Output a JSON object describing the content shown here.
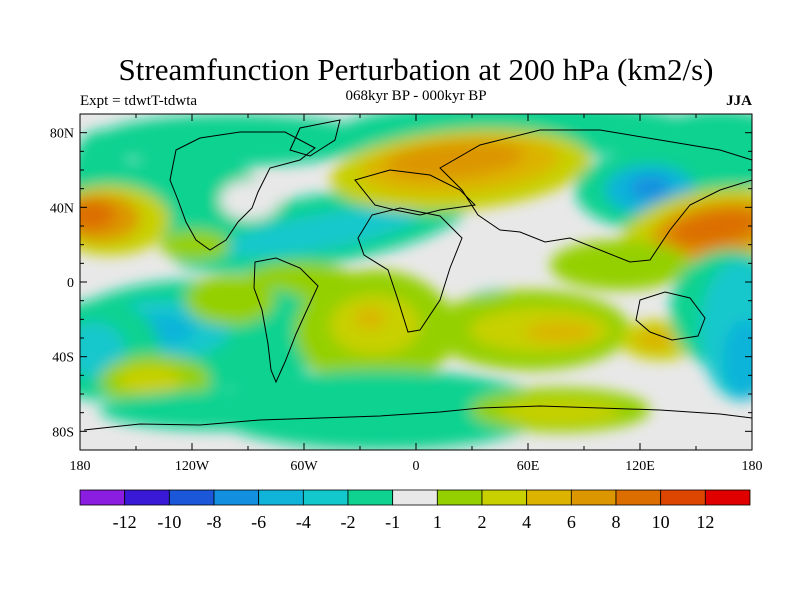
{
  "title": "Streamfunction Perturbation at 200 hPa (km2/s)",
  "subtitle": "068kyr BP - 000kyr BP",
  "left_label": "Expt = tdwtT-tdwta",
  "right_label": "JJA",
  "map": {
    "projection": "cylindrical equidistant",
    "lon_range": [
      -180,
      180
    ],
    "lat_range": [
      -90,
      90
    ],
    "lat_ticks": [
      {
        "value": 80,
        "label": "80N"
      },
      {
        "value": 40,
        "label": "40N"
      },
      {
        "value": 0,
        "label": "0"
      },
      {
        "value": -40,
        "label": "40S"
      },
      {
        "value": -80,
        "label": "80S"
      }
    ],
    "lon_ticks": [
      {
        "value": -180,
        "label": "180"
      },
      {
        "value": -120,
        "label": "120W"
      },
      {
        "value": -60,
        "label": "60W"
      },
      {
        "value": 0,
        "label": "0"
      },
      {
        "value": 60,
        "label": "60E"
      },
      {
        "value": 120,
        "label": "120E"
      },
      {
        "value": 180,
        "label": "180"
      }
    ],
    "background_color": "#e8e8e8"
  },
  "colorbar": {
    "colors": [
      "#8a1de0",
      "#3a19d6",
      "#1a58d9",
      "#1290df",
      "#10b4d9",
      "#12c8cc",
      "#10d290",
      "#e8e8e8",
      "#94d000",
      "#c8d000",
      "#dcb400",
      "#dc9600",
      "#dc6e00",
      "#dc4600",
      "#e00000"
    ],
    "labels": [
      "-12",
      "-10",
      "-8",
      "-6",
      "-4",
      "-2",
      "-1",
      "1",
      "2",
      "4",
      "6",
      "8",
      "10",
      "12"
    ]
  }
}
